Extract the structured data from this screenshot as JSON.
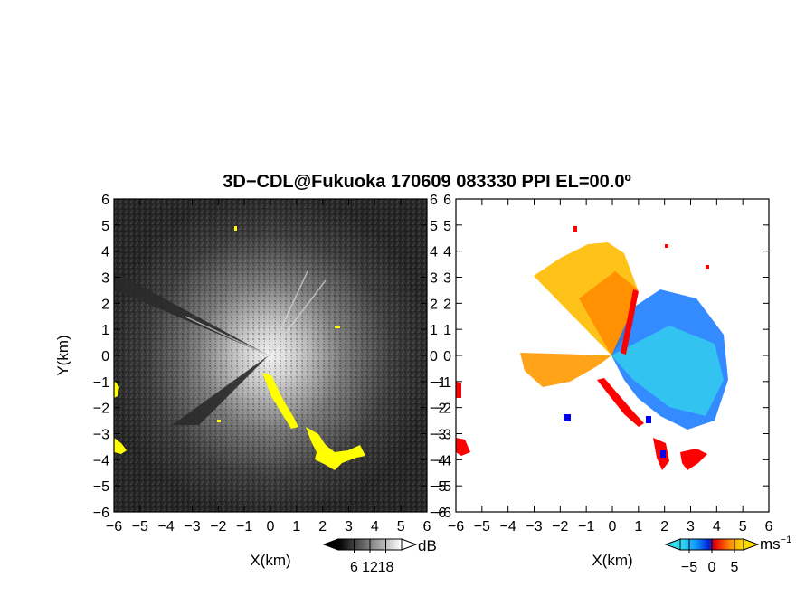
{
  "title": "3D−CDL@Fukuoka 170609 083330 PPI EL=00.0º",
  "colors": {
    "snr_dark": "#1e1e1e",
    "snr_bright": "#e6e6e6",
    "flag_yellow": "#ffff00",
    "vel_cyan": "#33ddee",
    "vel_blue": "#0033ff",
    "vel_red": "#ff0000",
    "vel_orange": "#ff8800",
    "vel_yellow": "#ffcc00"
  },
  "chart_data": [
    {
      "type": "heatmap",
      "name": "snr-ppi",
      "xlabel": "X(km)",
      "ylabel": "Y(km)",
      "xlim": [
        -6,
        6
      ],
      "ylim": [
        -6,
        6
      ],
      "x_ticks": [
        "−6",
        "−5",
        "−4",
        "−3",
        "−2",
        "−1",
        "0",
        "1",
        "2",
        "3",
        "4",
        "5",
        "6"
      ],
      "y_ticks": [
        "−6",
        "−5",
        "−4",
        "−3",
        "−2",
        "−1",
        "0",
        "1",
        "2",
        "3",
        "4",
        "5",
        "6"
      ],
      "colorbar": {
        "unit": "dB",
        "ticks": [
          "6",
          "12",
          "18"
        ],
        "tick_values": [
          6,
          12,
          18
        ],
        "range": [
          0,
          24
        ],
        "colormap": "gray"
      },
      "flagged_regions_color": "yellow"
    },
    {
      "type": "heatmap",
      "name": "doppler-velocity-ppi",
      "xlabel": "X(km)",
      "ylabel": "",
      "xlim": [
        -6,
        6
      ],
      "ylim": [
        -6,
        6
      ],
      "x_ticks": [
        "−6",
        "−5",
        "−4",
        "−3",
        "−2",
        "−1",
        "0",
        "1",
        "2",
        "3",
        "4",
        "5",
        "6"
      ],
      "y_ticks": [
        "−6",
        "−5",
        "−4",
        "−3",
        "−2",
        "−1",
        "0",
        "1",
        "2",
        "3",
        "4",
        "5",
        "6"
      ],
      "colorbar": {
        "unit": "ms",
        "unit_superscript": "−1",
        "ticks": [
          "−5",
          "0",
          "5"
        ],
        "tick_values": [
          -5,
          0,
          5
        ],
        "range": [
          -7,
          7
        ],
        "colormap": "cyan-blue-red-orange-yellow"
      },
      "approx_pattern": "receding (orange/yellow) toward west/northwest, approaching (blue/cyan) toward east/southeast"
    }
  ]
}
